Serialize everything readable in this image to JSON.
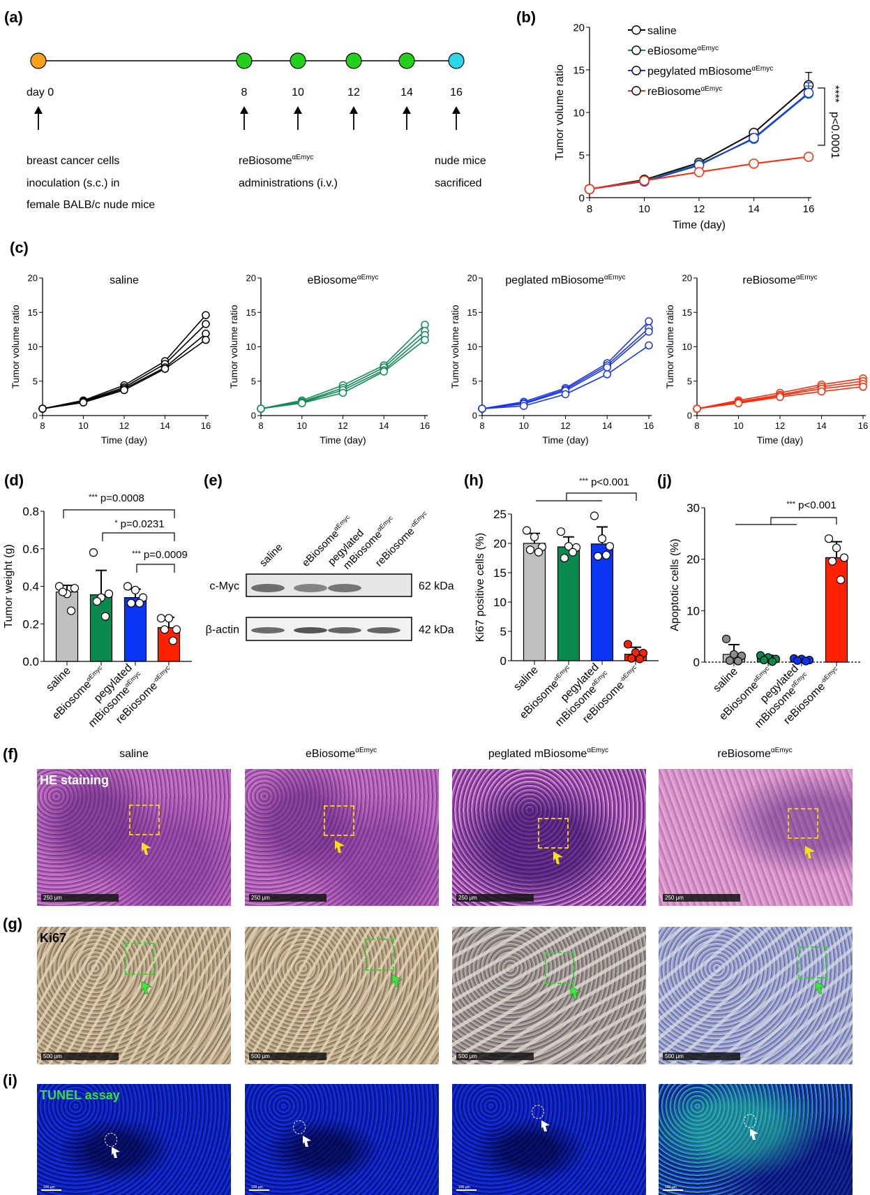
{
  "colors": {
    "saline": "#000000",
    "ebiosome": "#138a55",
    "pegylated": "#1a35e6",
    "rebiosome": "#ff2a0a",
    "bar_saline": "#bfbfbf",
    "bar_ebiosome": "#0a8a4f",
    "bar_pegylated": "#0a35f5",
    "bar_rebiosome": "#ff2200"
  },
  "panel_labels": {
    "a": "(a)",
    "b": "(b)",
    "c": "(c)",
    "d": "(d)",
    "e": "(e)",
    "f": "(f)",
    "g": "(g)",
    "h": "(h)",
    "i": "(i)",
    "j": "(j)"
  },
  "timeline": {
    "points": [
      {
        "label": "day 0",
        "color": "#f4a11c"
      },
      {
        "label": "8",
        "color": "#22d11c"
      },
      {
        "label": "10",
        "color": "#22d11c"
      },
      {
        "label": "12",
        "color": "#22d11c"
      },
      {
        "label": "14",
        "color": "#22d11c"
      },
      {
        "label": "16",
        "color": "#2ad8e8"
      }
    ],
    "text_inoculation": [
      "breast cancer cells",
      "inoculation (s.c.) in",
      "female BALB/c nude mice"
    ],
    "text_admin_name": "reBiosome",
    "text_admin_sup": "αEmyc",
    "text_admin_line2": "administrations (i.v.)",
    "text_sacrifice": [
      "nude mice",
      "sacrificed"
    ]
  },
  "chart_data": [
    {
      "id": "b",
      "type": "line",
      "title": "",
      "xlabel": "Time  (day)",
      "ylabel": "Tumor volume ratio",
      "x": [
        8,
        10,
        12,
        14,
        16
      ],
      "xlim": [
        8,
        16
      ],
      "ylim": [
        0,
        20
      ],
      "yticks": [
        0,
        5,
        10,
        15,
        20
      ],
      "xticks": [
        8,
        10,
        12,
        14,
        16
      ],
      "legend_position": "top-left",
      "series": [
        {
          "name": "saline",
          "sup": "",
          "color_key": "saline",
          "values": [
            1,
            2.1,
            4.1,
            7.6,
            13.2
          ],
          "err": [
            0,
            0.1,
            0.2,
            0.4,
            1.5
          ]
        },
        {
          "name": "eBiosome",
          "sup": "αEmyc",
          "color_key": "ebiosome",
          "values": [
            1,
            2.0,
            3.9,
            6.9,
            12.2
          ],
          "err": [
            0,
            0.1,
            0.2,
            0.3,
            0.9
          ]
        },
        {
          "name": "pegylated mBiosome",
          "sup": "αEmyc",
          "color_key": "pegylated",
          "values": [
            1,
            1.9,
            3.8,
            7.0,
            12.3
          ],
          "err": [
            0,
            0.2,
            0.3,
            0.5,
            1.2
          ]
        },
        {
          "name": "reBiosome",
          "sup": "αEmyc",
          "color_key": "rebiosome",
          "values": [
            1,
            2.0,
            3.0,
            4.0,
            4.8
          ],
          "err": [
            0,
            0.1,
            0.2,
            0.3,
            0.4
          ]
        }
      ],
      "annotation": {
        "stars": "****",
        "pvalue": "p<0.0001"
      }
    },
    {
      "id": "c1",
      "type": "line",
      "title": "saline",
      "title_sup": "",
      "color_key": "saline",
      "xlabel": "Time  (day)",
      "ylabel": "Tumor volume ratio",
      "x": [
        8,
        10,
        12,
        14,
        16
      ],
      "ylim": [
        0,
        20
      ],
      "yticks": [
        0,
        5,
        10,
        15,
        20
      ],
      "xticks": [
        8,
        10,
        12,
        14,
        16
      ],
      "series": [
        {
          "values": [
            1,
            2.2,
            4.4,
            7.9,
            14.6
          ]
        },
        {
          "values": [
            1,
            2.1,
            4.1,
            7.5,
            13.3
          ]
        },
        {
          "values": [
            1,
            2.0,
            3.9,
            7.0,
            11.9
          ]
        },
        {
          "values": [
            1,
            1.9,
            3.7,
            6.8,
            11.0
          ]
        }
      ]
    },
    {
      "id": "c2",
      "type": "line",
      "title": "eBiosome",
      "title_sup": "αEmyc",
      "color_key": "ebiosome",
      "xlabel": "Time  (day)",
      "ylabel": "Tumor volume ratio",
      "x": [
        8,
        10,
        12,
        14,
        16
      ],
      "ylim": [
        0,
        20
      ],
      "yticks": [
        0,
        5,
        10,
        15,
        20
      ],
      "xticks": [
        8,
        10,
        12,
        14,
        16
      ],
      "series": [
        {
          "values": [
            1,
            2.2,
            4.4,
            7.3,
            13.2
          ]
        },
        {
          "values": [
            1,
            2.0,
            4.0,
            7.0,
            12.3
          ]
        },
        {
          "values": [
            1,
            1.9,
            3.7,
            6.6,
            11.7
          ]
        },
        {
          "values": [
            1,
            1.8,
            3.3,
            6.4,
            11.0
          ]
        }
      ]
    },
    {
      "id": "c3",
      "type": "line",
      "title": "peglated mBiosome",
      "title_sup": "αEmyc",
      "color_key": "pegylated",
      "xlabel": "Time  (day)",
      "ylabel": "Tumor volume ratio",
      "x": [
        8,
        10,
        12,
        14,
        16
      ],
      "ylim": [
        0,
        20
      ],
      "yticks": [
        0,
        5,
        10,
        15,
        20
      ],
      "xticks": [
        8,
        10,
        12,
        14,
        16
      ],
      "series": [
        {
          "values": [
            1,
            2.0,
            4.0,
            7.6,
            13.7
          ]
        },
        {
          "values": [
            1,
            1.8,
            3.8,
            7.3,
            12.7
          ]
        },
        {
          "values": [
            1,
            1.7,
            3.6,
            7.0,
            12.2
          ]
        },
        {
          "values": [
            1,
            1.4,
            3.1,
            6.0,
            10.2
          ]
        }
      ]
    },
    {
      "id": "c4",
      "type": "line",
      "title": "reBiosome",
      "title_sup": "αEmyc",
      "color_key": "rebiosome",
      "xlabel": "Time  (day)",
      "ylabel": "Tumor volume ratio",
      "x": [
        8,
        10,
        12,
        14,
        16
      ],
      "ylim": [
        0,
        20
      ],
      "yticks": [
        0,
        5,
        10,
        15,
        20
      ],
      "xticks": [
        8,
        10,
        12,
        14,
        16
      ],
      "series": [
        {
          "values": [
            1,
            2.2,
            3.3,
            4.5,
            5.4
          ]
        },
        {
          "values": [
            1,
            2.0,
            3.0,
            4.2,
            5.0
          ]
        },
        {
          "values": [
            1,
            1.9,
            2.9,
            3.9,
            4.6
          ]
        },
        {
          "values": [
            1,
            1.8,
            2.7,
            3.5,
            4.2
          ]
        }
      ]
    },
    {
      "id": "d",
      "type": "bar",
      "ylabel": "Tumor weight (g)",
      "ylim": [
        0,
        0.8
      ],
      "yticks": [
        "0.0",
        "0.2",
        "0.4",
        "0.6",
        "0.8"
      ],
      "ytick_values": [
        0,
        0.2,
        0.4,
        0.6,
        0.8
      ],
      "categories": [
        {
          "l1": "saline",
          "l2": "",
          "sup": ""
        },
        {
          "l1": "eBiosome",
          "l2": "",
          "sup": "αEmyc"
        },
        {
          "l1": "pegylated",
          "l2": "mBiosome",
          "sup": "αEmyc"
        },
        {
          "l1": "reBiosome",
          "l2": "",
          "sup": "-αEmyc"
        }
      ],
      "means": [
        0.37,
        0.355,
        0.34,
        0.18
      ],
      "sd": [
        0.035,
        0.13,
        0.045,
        0.055
      ],
      "points": [
        [
          0.4,
          0.36,
          0.39,
          0.37,
          0.27
        ],
        [
          0.58,
          0.34,
          0.36,
          0.32,
          0.24
        ],
        [
          0.4,
          0.38,
          0.34,
          0.31,
          0.31
        ],
        [
          0.23,
          0.23,
          0.17,
          0.17,
          0.11
        ]
      ],
      "points_filled": false,
      "comparisons": [
        {
          "stars": "***",
          "p": "p=0.0008"
        },
        {
          "stars": "*",
          "p": "p=0.0231"
        },
        {
          "stars": "***",
          "p": "p=0.0009"
        }
      ]
    },
    {
      "id": "h",
      "type": "bar",
      "ylabel": "Ki67  positive cells (%)",
      "ylim": [
        0,
        25
      ],
      "yticks": [
        "0",
        "5",
        "10",
        "15",
        "20",
        "25"
      ],
      "ytick_values": [
        0,
        5,
        10,
        15,
        20,
        25
      ],
      "categories": [
        {
          "l1": "saline",
          "l2": "",
          "sup": ""
        },
        {
          "l1": "eBiosome",
          "l2": "",
          "sup": "αEmyc"
        },
        {
          "l1": "pegylated",
          "l2": "mBiosome",
          "sup": "αEmyc"
        },
        {
          "l1": "reBiosome",
          "l2": "",
          "sup": "-αEmyc"
        }
      ],
      "means": [
        20.0,
        19.4,
        19.9,
        1.1
      ],
      "sd": [
        1.7,
        1.7,
        2.9,
        1.2
      ],
      "points": [
        [
          22.2,
          21.1,
          19.4,
          18.9,
          18.5
        ],
        [
          22.0,
          19.5,
          19.3,
          17.5,
          18.5
        ],
        [
          24.7,
          20.8,
          19.5,
          17.8,
          18.0
        ],
        [
          2.8,
          1.4,
          1.3,
          0.4,
          0.3
        ]
      ],
      "points_filled": [
        false,
        false,
        false,
        true
      ],
      "comparisons": [
        {
          "stars": "***",
          "p": "p<0.001"
        }
      ]
    },
    {
      "id": "j",
      "type": "bar",
      "ylabel": "Apoptotic cells (%)",
      "ylim": [
        0,
        30
      ],
      "yticks": [
        "0",
        "10",
        "20",
        "30"
      ],
      "ytick_values": [
        0,
        10,
        20,
        30
      ],
      "categories": [
        {
          "l1": "saline",
          "l2": "",
          "sup": ""
        },
        {
          "l1": "eBiosome",
          "l2": "",
          "sup": "αEmyc"
        },
        {
          "l1": "pegylated",
          "l2": "mBiosome",
          "sup": "αEmyc"
        },
        {
          "l1": "reBiosome",
          "l2": "",
          "sup": "-αEmyc"
        }
      ],
      "means": [
        1.5,
        0.8,
        0.5,
        20.3
      ],
      "sd": [
        1.9,
        0.5,
        0.3,
        3.1
      ],
      "points": [
        [
          4.5,
          1.5,
          1.2,
          0.3,
          0.2
        ],
        [
          1.3,
          0.9,
          0.6,
          0.4,
          0.1
        ],
        [
          0.7,
          0.6,
          0.4,
          0.3,
          0.2
        ],
        [
          24.0,
          22.2,
          20.3,
          19.6,
          16.0
        ]
      ],
      "points_filled": [
        true,
        true,
        true,
        false
      ],
      "comparisons": [
        {
          "stars": "***",
          "p": "p<0.001"
        }
      ]
    }
  ],
  "western_blot": {
    "lanes": [
      {
        "l1": "saline",
        "l2": "",
        "sup": ""
      },
      {
        "l1": "eBiosome",
        "l2": "",
        "sup": "αEmyc"
      },
      {
        "l1": "pegylated",
        "l2": "mBiosome",
        "sup": "αEmyc"
      },
      {
        "l1": "reBiosome",
        "l2": "",
        "sup": "-αEmyc"
      }
    ],
    "rows": [
      {
        "protein": "c-Myc",
        "size": "62 kDa",
        "intensity": [
          0.8,
          0.65,
          0.75,
          0.0
        ]
      },
      {
        "protein": "β-actin",
        "size": "42 kDa",
        "intensity": [
          0.85,
          1.0,
          0.9,
          0.9
        ]
      }
    ]
  },
  "micrographs": {
    "columns": [
      {
        "name": "saline",
        "sup": ""
      },
      {
        "name": "eBiosome",
        "sup": "αEmyc"
      },
      {
        "name": "peglated mBiosome",
        "sup": "αEmyc"
      },
      {
        "name": "reBiosome",
        "sup": "αEmyc"
      }
    ],
    "he_label": "HE staining",
    "he_scale": "250 μm",
    "ki67_label": "Ki67",
    "ki67_scale": "500 μm",
    "tunel_label": "TUNEL assay",
    "tunel_scale": "100 μm"
  }
}
